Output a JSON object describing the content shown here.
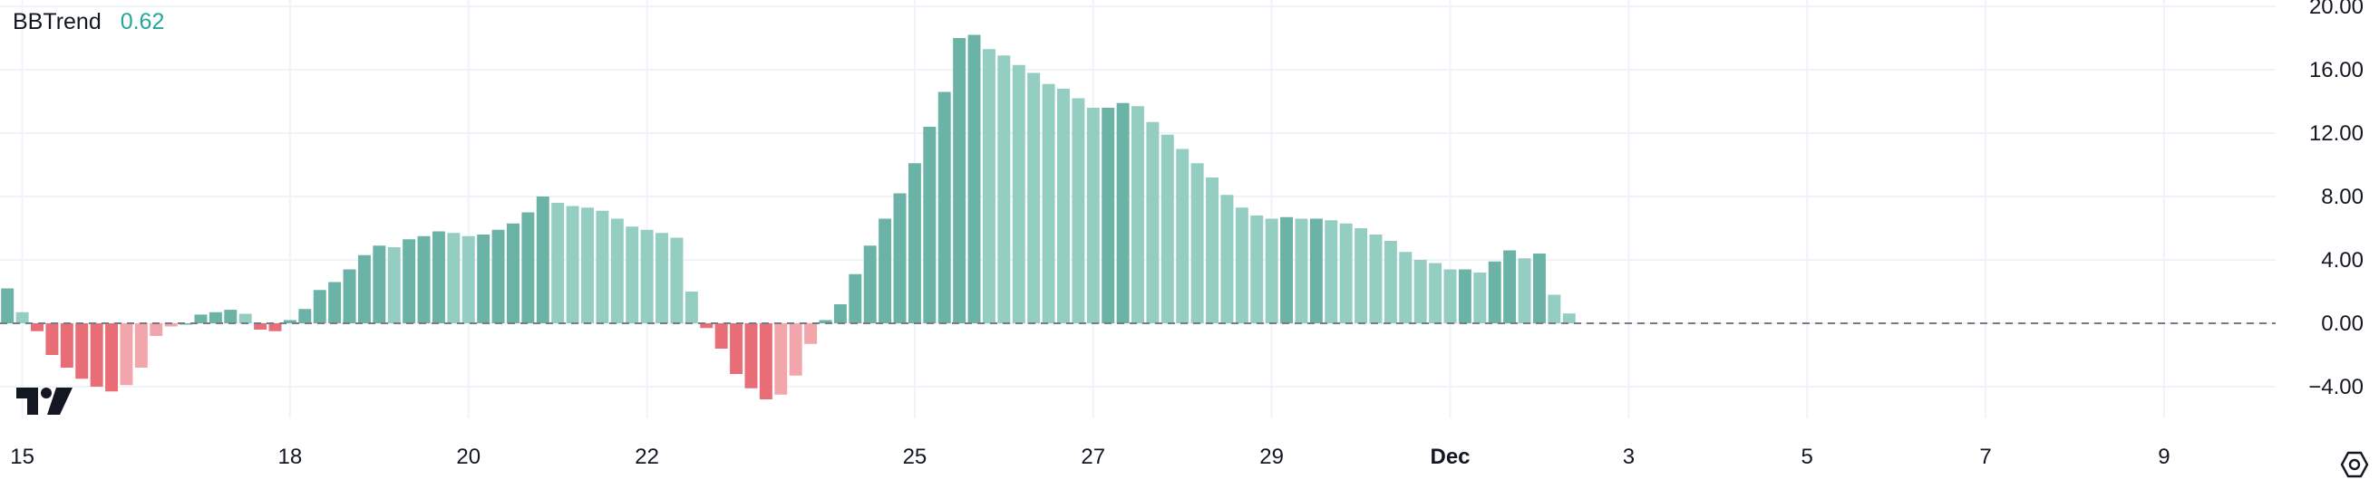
{
  "indicator": {
    "name": "BBTrend",
    "value": "0.62",
    "value_color": "#26a69a"
  },
  "colors": {
    "pos_strong": "#6bb3a6",
    "pos_weak": "#94cdc1",
    "neg_strong": "#e86d77",
    "neg_weak": "#f2a6ac",
    "grid": "#f0f3fa",
    "zero_line": "#787b86"
  },
  "icons": {
    "logo": "tradingview-logo-icon",
    "settings": "settings-icon"
  },
  "chart_data": {
    "type": "bar",
    "title": "BBTrend",
    "ylim": [
      -6,
      20.4
    ],
    "y_ticks": [
      20,
      16,
      12,
      8,
      4,
      0,
      -4
    ],
    "y_tick_labels": [
      "20.00",
      "16.00",
      "12.00",
      "8.00",
      "4.00",
      "0.00",
      "−4.00"
    ],
    "x_tick_labels": [
      {
        "label": "15",
        "bar": 1,
        "bold": false
      },
      {
        "label": "18",
        "bar": 19,
        "bold": false
      },
      {
        "label": "20",
        "bar": 31,
        "bold": false
      },
      {
        "label": "22",
        "bar": 43,
        "bold": false
      },
      {
        "label": "25",
        "bar": 61,
        "bold": false
      },
      {
        "label": "27",
        "bar": 73,
        "bold": false
      },
      {
        "label": "29",
        "bar": 85,
        "bold": false
      },
      {
        "label": "Dec",
        "bar": 97,
        "bold": true
      },
      {
        "label": "3",
        "bar": 109,
        "bold": false
      },
      {
        "label": "5",
        "bar": 121,
        "bold": false
      },
      {
        "label": "7",
        "bar": 133,
        "bold": false
      },
      {
        "label": "9",
        "bar": 145,
        "bold": false
      }
    ],
    "total_slots": 153,
    "gridlines": true,
    "zero_line": "dashed",
    "values": [
      2.2,
      0.7,
      -0.5,
      -2.0,
      -2.8,
      -3.5,
      -4.0,
      -4.3,
      -3.9,
      -2.8,
      -0.8,
      -0.2,
      0.0,
      0.55,
      0.7,
      0.85,
      0.6,
      -0.4,
      -0.5,
      0.2,
      0.9,
      2.1,
      2.6,
      3.4,
      4.3,
      4.9,
      4.8,
      5.3,
      5.5,
      5.8,
      5.7,
      5.5,
      5.6,
      5.9,
      6.3,
      7.0,
      8.0,
      7.6,
      7.4,
      7.3,
      7.1,
      6.6,
      6.1,
      5.9,
      5.7,
      5.4,
      2.0,
      -0.3,
      -1.6,
      -3.2,
      -4.1,
      -4.8,
      -4.5,
      -3.3,
      -1.3,
      0.2,
      1.2,
      3.1,
      4.9,
      6.6,
      8.2,
      10.1,
      12.4,
      14.6,
      18.0,
      18.2,
      17.3,
      16.9,
      16.3,
      15.8,
      15.1,
      14.8,
      14.2,
      13.6,
      13.6,
      13.9,
      13.7,
      12.7,
      11.9,
      11.0,
      10.1,
      9.2,
      8.1,
      7.3,
      6.8,
      6.6,
      6.7,
      6.6,
      6.6,
      6.5,
      6.3,
      6.0,
      5.6,
      5.2,
      4.5,
      4.0,
      3.8,
      3.4,
      3.4,
      3.2,
      3.9,
      4.6,
      4.1,
      4.4,
      1.8,
      0.62
    ]
  }
}
